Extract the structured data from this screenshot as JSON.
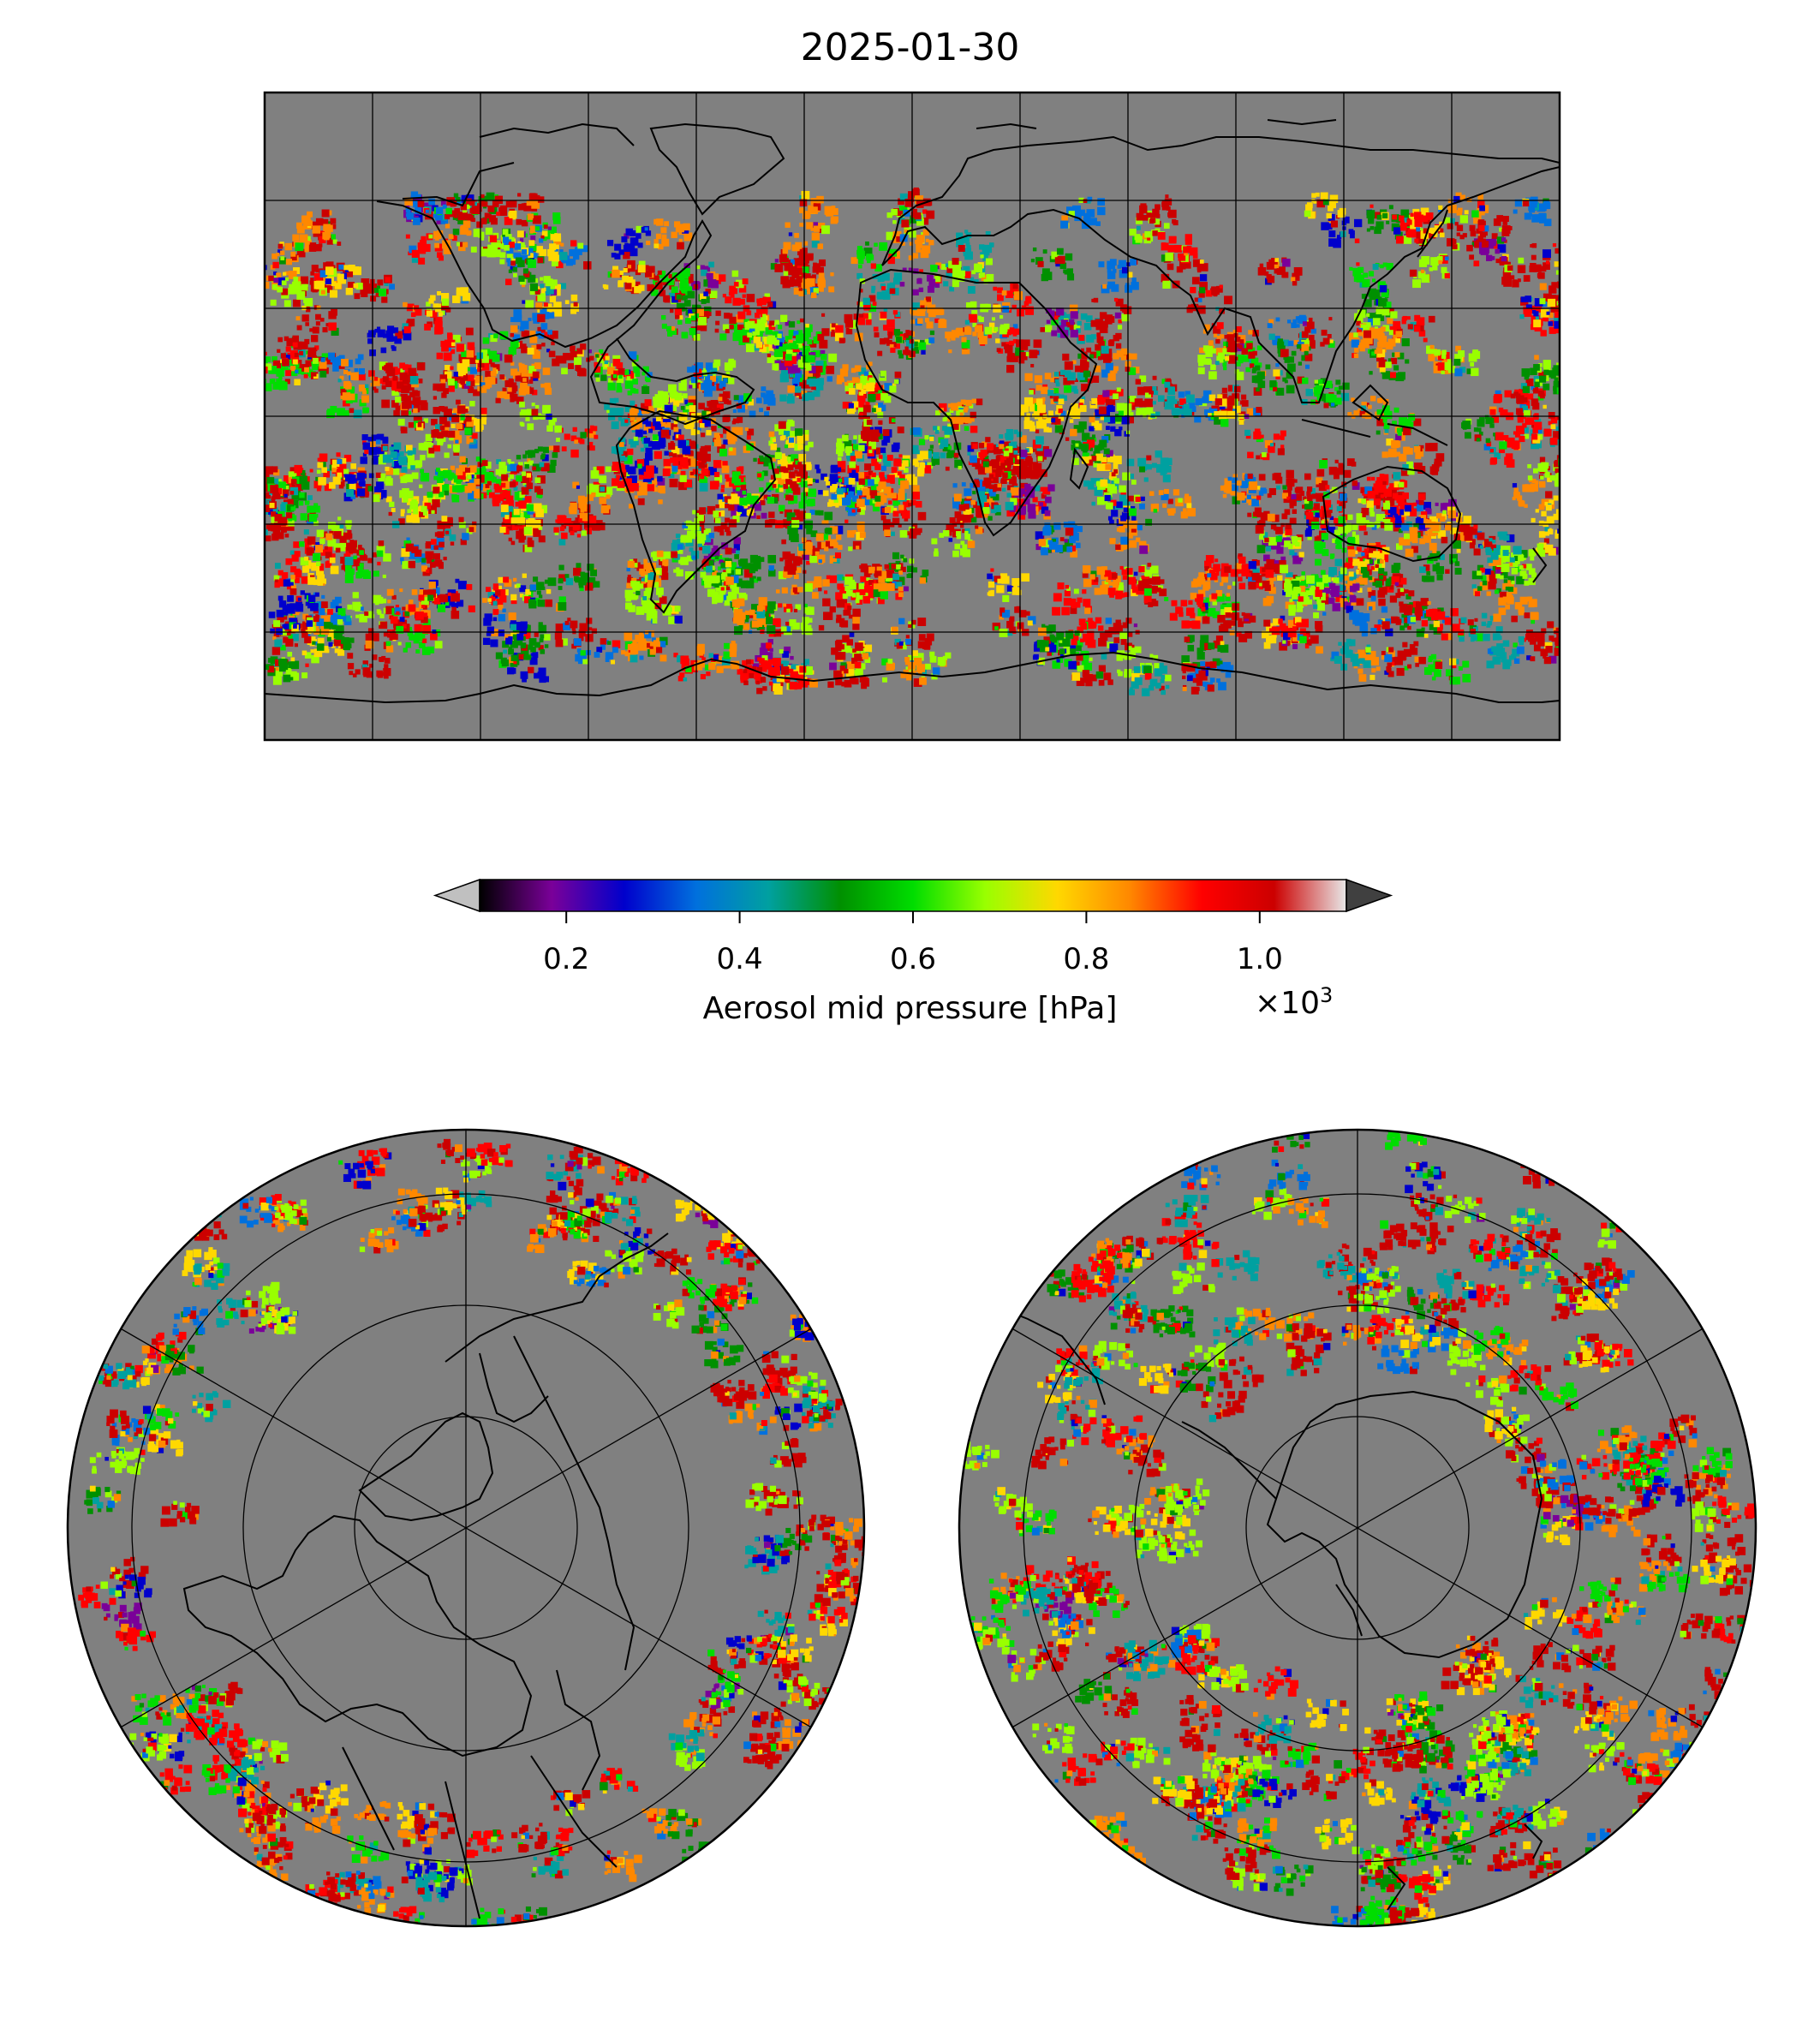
{
  "title": "2025-01-30",
  "colorbar": {
    "label": "Aerosol mid pressure [hPa]",
    "multiplier_prefix": "×10",
    "multiplier_exp": "3",
    "ticks": [
      {
        "value": 0.2,
        "label": "0.2"
      },
      {
        "value": 0.4,
        "label": "0.4"
      },
      {
        "value": 0.6,
        "label": "0.6"
      },
      {
        "value": 0.8,
        "label": "0.8"
      },
      {
        "value": 1.0,
        "label": "1.0"
      }
    ],
    "range": [
      0.1,
      1.1
    ],
    "extend": "both",
    "under_color": "#c0c0c0",
    "over_color": "#404040",
    "colormap": [
      "#000000",
      "#7a0099",
      "#0000cc",
      "#0070dd",
      "#00a0a0",
      "#009000",
      "#00dd00",
      "#99ff00",
      "#ffd800",
      "#ff8800",
      "#ff0000",
      "#cc0000",
      "#e8e8e8"
    ]
  },
  "maps": {
    "background_color": "#808080",
    "global": {
      "projection": "PlateCarree",
      "gridlines": true
    },
    "north_polar": {
      "projection": "NorthPolarStereo",
      "gridlines": true
    },
    "south_polar": {
      "projection": "SouthPolarStereo",
      "gridlines": true
    }
  }
}
